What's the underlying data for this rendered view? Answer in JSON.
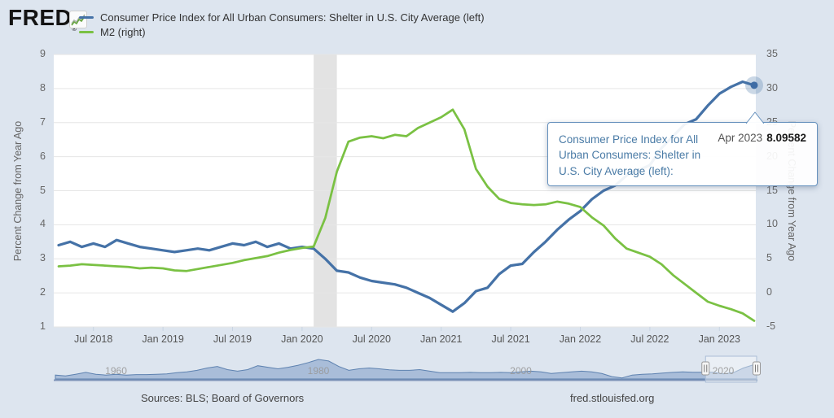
{
  "brand": {
    "name": "FRED",
    "registered": "®"
  },
  "legend": {
    "items": [
      {
        "label": "Consumer Price Index for All Urban Consumers: Shelter in U.S. City Average (left)",
        "color": "#4572a7"
      },
      {
        "label": "M2 (right)",
        "color": "#7ac143"
      }
    ]
  },
  "axes": {
    "left": {
      "title": "Percent Change from Year Ago",
      "ticks": [
        "9",
        "8",
        "7",
        "6",
        "5",
        "4",
        "3",
        "2",
        "1"
      ]
    },
    "right": {
      "title": "Percent Change from Year Ago",
      "ticks": [
        "35",
        "30",
        "25",
        "20",
        "15",
        "10",
        "5",
        "0",
        "-5"
      ]
    },
    "x": {
      "labels": [
        "Jul 2018",
        "Jan 2019",
        "Jul 2019",
        "Jan 2020",
        "Jul 2020",
        "Jan 2021",
        "Jul 2021",
        "Jan 2022",
        "Jul 2022",
        "Jan 2023"
      ]
    }
  },
  "tooltip": {
    "series_label": "Consumer Price Index for All Urban Consumers: Shelter in U.S. City Average (left):",
    "date": "Apr 2023",
    "value": "8.09582"
  },
  "navigator": {
    "year_labels": [
      "1960",
      "1980",
      "2000",
      "2020"
    ]
  },
  "footer": {
    "sources": "Sources: BLS; Board of Governors",
    "site": "fred.stlouisfed.org"
  },
  "colors": {
    "background": "#dde5ef",
    "plot_background": "#ffffff",
    "gridline": "#e6e6e6",
    "cpi_line": "#4572a7",
    "m2_line": "#7ac143",
    "recession_band": "#e3e3e3",
    "marker_dot": "#3e6ca5",
    "marker_halo": "rgba(69,114,167,0.28)",
    "nav_fill": "#a9bdd9",
    "nav_stroke": "#5e82b0",
    "nav_baseline": "#7e94b8",
    "tooltip_border": "#6691bd"
  },
  "chart_data": {
    "type": "line",
    "frequency": "monthly",
    "start": "2018-04",
    "end": "2023-04",
    "left_ylim": [
      1,
      9
    ],
    "right_ylim": [
      -5,
      35
    ],
    "x_tick_month_indices": [
      3,
      9,
      15,
      21,
      27,
      33,
      39,
      45,
      51,
      57
    ],
    "series": [
      {
        "name": "Consumer Price Index for All Urban Consumers: Shelter in U.S. City Average (left)",
        "axis": "left",
        "color": "#4572a7",
        "values": [
          3.4,
          3.5,
          3.35,
          3.45,
          3.35,
          3.55,
          3.45,
          3.35,
          3.3,
          3.25,
          3.2,
          3.25,
          3.3,
          3.25,
          3.35,
          3.45,
          3.4,
          3.5,
          3.35,
          3.45,
          3.3,
          3.35,
          3.3,
          3.0,
          2.65,
          2.6,
          2.45,
          2.35,
          2.3,
          2.25,
          2.15,
          2.0,
          1.85,
          1.65,
          1.45,
          1.7,
          2.05,
          2.15,
          2.55,
          2.8,
          2.85,
          3.2,
          3.5,
          3.85,
          4.15,
          4.4,
          4.75,
          5.0,
          5.15,
          5.45,
          5.6,
          5.75,
          6.25,
          6.6,
          6.95,
          7.1,
          7.5,
          7.85,
          8.05,
          8.2,
          8.09582
        ]
      },
      {
        "name": "M2 (right)",
        "axis": "right",
        "color": "#7ac143",
        "values": [
          3.9,
          4.0,
          4.2,
          4.1,
          4.0,
          3.9,
          3.8,
          3.6,
          3.7,
          3.6,
          3.3,
          3.2,
          3.5,
          3.8,
          4.1,
          4.4,
          4.8,
          5.1,
          5.4,
          5.9,
          6.3,
          6.6,
          6.8,
          11.0,
          17.8,
          22.2,
          22.8,
          23.0,
          22.7,
          23.2,
          23.0,
          24.2,
          25.0,
          25.8,
          26.9,
          24.0,
          18.2,
          15.6,
          13.8,
          13.2,
          13.0,
          12.9,
          13.0,
          13.4,
          13.1,
          12.6,
          11.1,
          9.9,
          8.0,
          6.5,
          5.9,
          5.3,
          4.2,
          2.6,
          1.3,
          0.0,
          -1.3,
          -1.9,
          -2.4,
          -3.0,
          -4.1
        ]
      }
    ],
    "recession_band": {
      "from": "2020-02",
      "to": "2020-04",
      "start_index": 22,
      "end_index": 24
    },
    "marker": {
      "series_index": 0,
      "point_index": 60,
      "date": "Apr 2023",
      "value": 8.09582
    },
    "navigator": {
      "type": "area",
      "x_years_start": 1954,
      "x_years_end": 2023.3,
      "values": [
        1.5,
        1.0,
        2.0,
        3.2,
        2.0,
        1.5,
        2.0,
        1.5,
        1.8,
        1.8,
        2.0,
        2.2,
        3.0,
        3.5,
        4.5,
        6.0,
        7.0,
        5.0,
        4.0,
        5.0,
        7.5,
        6.5,
        5.5,
        6.5,
        7.8,
        9.5,
        11.5,
        10.5,
        7.0,
        4.5,
        5.5,
        6.0,
        5.5,
        4.8,
        4.5,
        4.5,
        5.0,
        4.0,
        3.0,
        3.0,
        3.0,
        3.2,
        3.0,
        3.0,
        3.2,
        3.0,
        3.5,
        4.0,
        3.5,
        2.5,
        3.0,
        3.5,
        4.0,
        3.5,
        2.5,
        0.5,
        -0.3,
        1.5,
        2.0,
        2.3,
        2.8,
        3.2,
        3.5,
        3.3,
        3.3,
        3.3,
        2.3,
        3.0,
        6.0,
        8.1
      ],
      "label_years": [
        1960,
        1980,
        2000,
        2020
      ],
      "selection_years": [
        2018.25,
        2023.3
      ]
    }
  }
}
